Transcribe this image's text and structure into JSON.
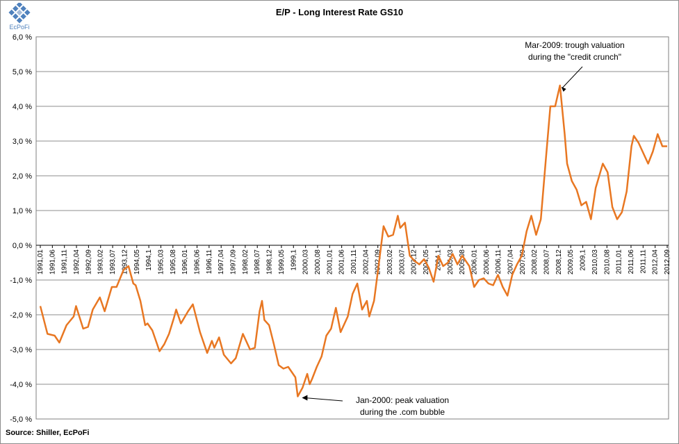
{
  "logo": {
    "text": "EcPoFi"
  },
  "source_note": "Source: Shiller,  EcPoFi",
  "colors": {
    "line": "#E87722",
    "grid": "#8c8c8c",
    "axis": "#7f7f7f"
  },
  "chart_data": {
    "type": "line",
    "title": "E/P - Long Interest Rate GS10",
    "xlabel": "",
    "ylabel": "",
    "ylim": [
      -5.0,
      6.0
    ],
    "y_ticks": [
      "6,0 %",
      "5,0 %",
      "4,0 %",
      "3,0 %",
      "2,0 %",
      "1,0 %",
      "0,0 %",
      "-1,0 %",
      "-2,0 %",
      "-3,0 %",
      "-4,0 %",
      "-5,0 %"
    ],
    "x_tick_labels": [
      "1991,01",
      "1991,06",
      "1991,11",
      "1992,04",
      "1992,09",
      "1993,02",
      "1993,07",
      "1993,12",
      "1994,05",
      "1994,1",
      "1995,03",
      "1995,08",
      "1996,01",
      "1996,06",
      "1996,11",
      "1997,04",
      "1997,09",
      "1998,02",
      "1998,07",
      "1998,12",
      "1999,05",
      "1999,1",
      "2000,03",
      "2000,08",
      "2001,01",
      "2001,06",
      "2001,11",
      "2002,04",
      "2002,09",
      "2003,02",
      "2003,07",
      "2003,12",
      "2004,05",
      "2004,1",
      "2005,03",
      "2005,08",
      "2006,01",
      "2006,06",
      "2006,11",
      "2007,04",
      "2007,09",
      "2008,02",
      "2008,07",
      "2008,12",
      "2009,05",
      "2009,1",
      "2010,03",
      "2010,08",
      "2011,01",
      "2011,06",
      "2011,11",
      "2012,04",
      "2012,09"
    ],
    "grid": "horizontal",
    "series": [
      {
        "points": [
          [
            "1991-01",
            -1.75
          ],
          [
            "1991-04",
            -2.55
          ],
          [
            "1991-07",
            -2.6
          ],
          [
            "1991-09",
            -2.8
          ],
          [
            "1991-12",
            -2.3
          ],
          [
            "1992-03",
            -2.05
          ],
          [
            "1992-04",
            -1.75
          ],
          [
            "1992-07",
            -2.4
          ],
          [
            "1992-09",
            -2.35
          ],
          [
            "1992-11",
            -1.85
          ],
          [
            "1993-02",
            -1.5
          ],
          [
            "1993-04",
            -1.9
          ],
          [
            "1993-07",
            -1.2
          ],
          [
            "1993-09",
            -1.2
          ],
          [
            "1993-12",
            -0.7
          ],
          [
            "1994-02",
            -0.6
          ],
          [
            "1994-04",
            -1.1
          ],
          [
            "1994-05",
            -1.15
          ],
          [
            "1994-07",
            -1.6
          ],
          [
            "1994-09",
            -2.3
          ],
          [
            "1994-10",
            -2.25
          ],
          [
            "1994-12",
            -2.45
          ],
          [
            "1995-02",
            -2.85
          ],
          [
            "1995-03",
            -3.05
          ],
          [
            "1995-05",
            -2.85
          ],
          [
            "1995-07",
            -2.55
          ],
          [
            "1995-09",
            -2.1
          ],
          [
            "1995-10",
            -1.85
          ],
          [
            "1995-12",
            -2.25
          ],
          [
            "1996-03",
            -1.9
          ],
          [
            "1996-05",
            -1.7
          ],
          [
            "1996-08",
            -2.5
          ],
          [
            "1996-11",
            -3.1
          ],
          [
            "1997-01",
            -2.75
          ],
          [
            "1997-02",
            -2.95
          ],
          [
            "1997-04",
            -2.65
          ],
          [
            "1997-06",
            -3.15
          ],
          [
            "1997-09",
            -3.4
          ],
          [
            "1997-11",
            -3.25
          ],
          [
            "1998-02",
            -2.55
          ],
          [
            "1998-05",
            -3.0
          ],
          [
            "1998-07",
            -2.95
          ],
          [
            "1998-09",
            -1.9
          ],
          [
            "1998-10",
            -1.6
          ],
          [
            "1998-11",
            -2.15
          ],
          [
            "1999-01",
            -2.3
          ],
          [
            "1999-03",
            -2.85
          ],
          [
            "1999-05",
            -3.45
          ],
          [
            "1999-07",
            -3.55
          ],
          [
            "1999-09",
            -3.5
          ],
          [
            "1999-12",
            -3.8
          ],
          [
            "2000-01",
            -4.35
          ],
          [
            "2000-03",
            -4.1
          ],
          [
            "2000-05",
            -3.7
          ],
          [
            "2000-06",
            -4.0
          ],
          [
            "2000-07",
            -3.85
          ],
          [
            "2000-09",
            -3.5
          ],
          [
            "2000-11",
            -3.2
          ],
          [
            "2001-01",
            -2.6
          ],
          [
            "2001-03",
            -2.4
          ],
          [
            "2001-05",
            -1.8
          ],
          [
            "2001-07",
            -2.5
          ],
          [
            "2001-10",
            -2.05
          ],
          [
            "2001-12",
            -1.4
          ],
          [
            "2002-02",
            -1.1
          ],
          [
            "2002-04",
            -1.85
          ],
          [
            "2002-06",
            -1.6
          ],
          [
            "2002-07",
            -2.05
          ],
          [
            "2002-09",
            -1.6
          ],
          [
            "2002-11",
            -0.55
          ],
          [
            "2003-01",
            0.55
          ],
          [
            "2003-03",
            0.25
          ],
          [
            "2003-05",
            0.3
          ],
          [
            "2003-07",
            0.85
          ],
          [
            "2003-08",
            0.5
          ],
          [
            "2003-10",
            0.65
          ],
          [
            "2003-12",
            -0.3
          ],
          [
            "2004-02",
            -0.45
          ],
          [
            "2004-04",
            -0.55
          ],
          [
            "2004-06",
            -0.4
          ],
          [
            "2004-08",
            -0.65
          ],
          [
            "2004-10",
            -1.05
          ],
          [
            "2004-12",
            -0.3
          ],
          [
            "2005-02",
            -0.6
          ],
          [
            "2005-04",
            -0.5
          ],
          [
            "2005-06",
            -0.25
          ],
          [
            "2005-08",
            -0.55
          ],
          [
            "2005-10",
            -0.3
          ],
          [
            "2006-01",
            -0.6
          ],
          [
            "2006-03",
            -1.2
          ],
          [
            "2006-05",
            -1.0
          ],
          [
            "2006-07",
            -0.95
          ],
          [
            "2006-09",
            -1.1
          ],
          [
            "2006-11",
            -1.15
          ],
          [
            "2007-01",
            -0.85
          ],
          [
            "2007-03",
            -1.2
          ],
          [
            "2007-05",
            -1.45
          ],
          [
            "2007-07",
            -0.85
          ],
          [
            "2007-09",
            -0.55
          ],
          [
            "2007-11",
            -0.3
          ],
          [
            "2008-01",
            0.4
          ],
          [
            "2008-03",
            0.85
          ],
          [
            "2008-05",
            0.3
          ],
          [
            "2008-07",
            0.75
          ],
          [
            "2008-09",
            2.4
          ],
          [
            "2008-11",
            4.0
          ],
          [
            "2009-01",
            4.0
          ],
          [
            "2009-03",
            4.6
          ],
          [
            "2009-05",
            3.2
          ],
          [
            "2009-06",
            2.35
          ],
          [
            "2009-08",
            1.85
          ],
          [
            "2009-10",
            1.6
          ],
          [
            "2009-12",
            1.15
          ],
          [
            "2010-02",
            1.25
          ],
          [
            "2010-04",
            0.75
          ],
          [
            "2010-06",
            1.65
          ],
          [
            "2010-09",
            2.35
          ],
          [
            "2010-11",
            2.1
          ],
          [
            "2011-01",
            1.1
          ],
          [
            "2011-03",
            0.75
          ],
          [
            "2011-05",
            0.95
          ],
          [
            "2011-07",
            1.55
          ],
          [
            "2011-09",
            2.85
          ],
          [
            "2011-10",
            3.15
          ],
          [
            "2011-12",
            2.95
          ],
          [
            "2012-02",
            2.65
          ],
          [
            "2012-04",
            2.35
          ],
          [
            "2012-06",
            2.7
          ],
          [
            "2012-08",
            3.2
          ],
          [
            "2012-10",
            2.85
          ],
          [
            "2012-12",
            2.85
          ]
        ]
      }
    ],
    "annotations": [
      {
        "lines": [
          "Mar-2009:  trough valuation",
          "during the \"credit crunch\""
        ],
        "point": [
          "2009-03",
          4.6
        ]
      },
      {
        "lines": [
          "Jan-2000:  peak valuation",
          "during the .com bubble"
        ],
        "point": [
          "2000-01",
          -4.35
        ]
      }
    ]
  }
}
